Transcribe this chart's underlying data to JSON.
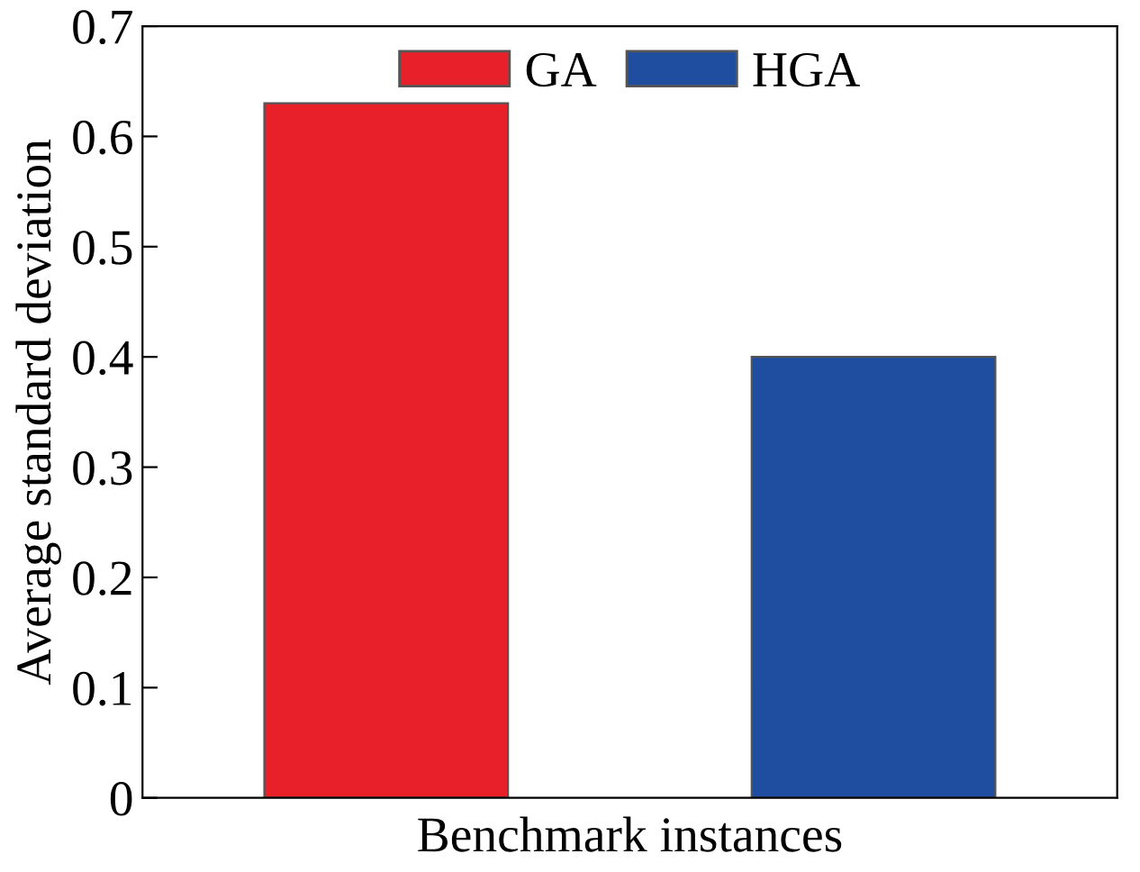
{
  "chart_data": {
    "type": "bar",
    "xlabel": "Benchmark instances",
    "ylabel": "Average standard deviation",
    "categories": [
      null,
      null
    ],
    "series": [
      {
        "name": "GA",
        "color": "#e8202a",
        "values": [
          0.63,
          null
        ]
      },
      {
        "name": "HGA",
        "color": "#1f4ea0",
        "values": [
          null,
          0.4
        ]
      }
    ],
    "ylim": [
      0,
      0.7
    ],
    "yticks": [
      0,
      0.1,
      0.2,
      0.3,
      0.4,
      0.5,
      0.6,
      0.7
    ],
    "grid": false,
    "legend": "top"
  }
}
